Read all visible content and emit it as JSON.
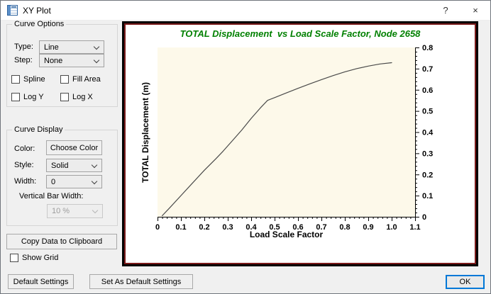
{
  "window": {
    "title": "XY Plot",
    "help_label": "?",
    "close_label": "×"
  },
  "curve_options": {
    "group_label": "Curve Options",
    "type_label": "Type:",
    "type_value": "Line",
    "step_label": "Step:",
    "step_value": "None",
    "spline_label": "Spline",
    "fill_area_label": "Fill Area",
    "log_y_label": "Log Y",
    "log_x_label": "Log X"
  },
  "curve_display": {
    "group_label": "Curve Display",
    "color_label": "Color:",
    "choose_color_button": "Choose Color",
    "style_label": "Style:",
    "style_value": "Solid",
    "width_label": "Width:",
    "width_value": "0",
    "vertical_bar_width_label": "Vertical Bar Width:",
    "vertical_bar_width_value": "10 %"
  },
  "buttons": {
    "copy_data": "Copy Data to Clipboard",
    "show_grid": "Show Grid",
    "default_settings": "Default Settings",
    "set_as_default": "Set As Default Settings",
    "ok": "OK"
  },
  "chart_data": {
    "type": "line",
    "title": "TOTAL Displacement  vs Load Scale Factor, Node 2658",
    "xlabel": "Load Scale Factor",
    "ylabel": "TOTAL Displacement (m)",
    "xlim": [
      0,
      1.1
    ],
    "ylim": [
      0,
      0.8
    ],
    "x_tick_values": [
      0,
      0.1,
      0.2,
      0.3,
      0.4,
      0.5,
      0.6,
      0.7,
      0.8,
      0.9,
      1.0,
      1.1
    ],
    "x_tick_labels": [
      "0",
      "0.1",
      "0.2",
      "0.3",
      "0.4",
      "0.5",
      "0.6",
      "0.7",
      "0.8",
      "0.9",
      "1.0",
      "1.1"
    ],
    "y_tick_values": [
      0,
      0.1,
      0.2,
      0.3,
      0.4,
      0.5,
      0.6,
      0.7,
      0.8
    ],
    "y_tick_labels": [
      "0",
      "0.1",
      "0.2",
      "0.3",
      "0.4",
      "0.5",
      "0.6",
      "0.7",
      "0.8"
    ],
    "minor_tick_step": 0.02,
    "major_tick_step": 0.1,
    "grid": false,
    "legend": "none",
    "colors": {
      "title": "#008000",
      "plot_bg": "#fdf9ea",
      "curve": "#4a4a4a",
      "frame_outer": "#000000",
      "frame_inner": "#7a1a1a",
      "axis": "#000000"
    },
    "series": [
      {
        "name": "TOTAL Displacement (m) vs Load Scale Factor",
        "x": [
          0.02,
          0.05,
          0.1,
          0.15,
          0.2,
          0.25,
          0.28,
          0.32,
          0.36,
          0.4,
          0.44,
          0.47,
          0.5,
          0.55,
          0.6,
          0.65,
          0.7,
          0.75,
          0.8,
          0.85,
          0.9,
          0.95,
          1.0
        ],
        "y": [
          0.005,
          0.04,
          0.1,
          0.16,
          0.22,
          0.275,
          0.31,
          0.36,
          0.41,
          0.465,
          0.515,
          0.55,
          0.563,
          0.585,
          0.607,
          0.628,
          0.648,
          0.667,
          0.685,
          0.7,
          0.712,
          0.722,
          0.728
        ]
      }
    ]
  }
}
